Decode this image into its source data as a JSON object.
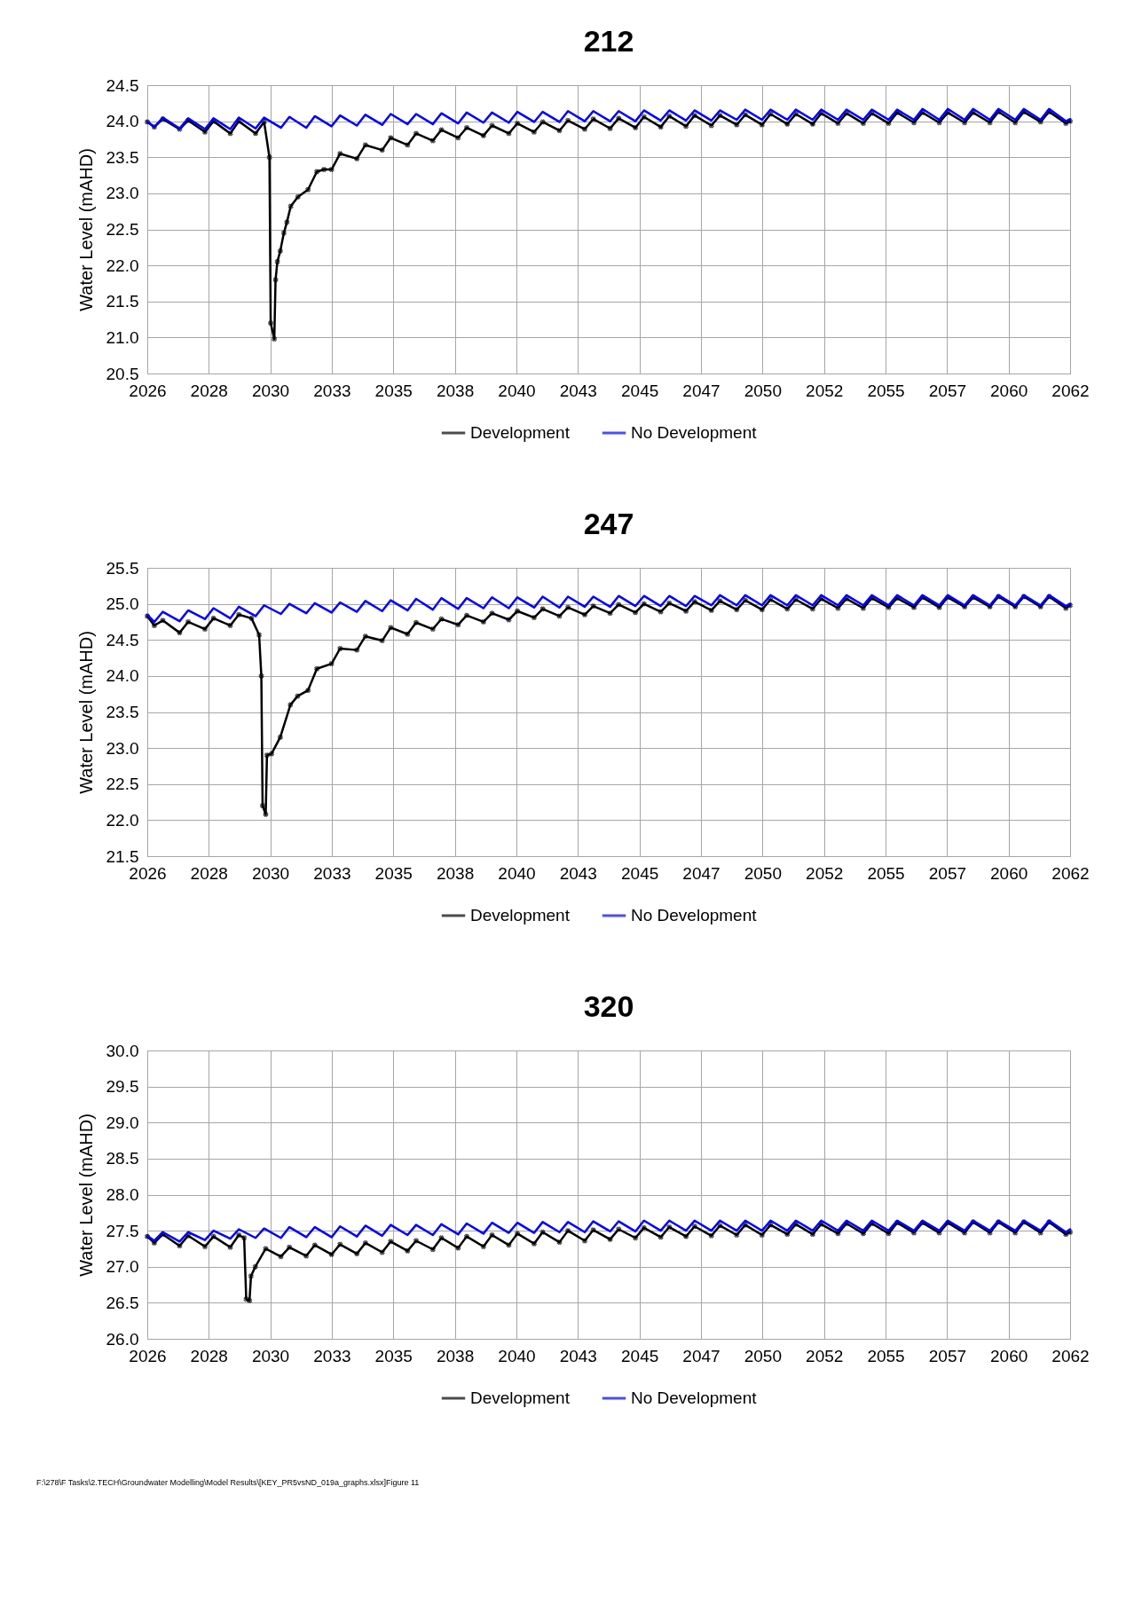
{
  "chart_data": [
    {
      "type": "line",
      "title": "212",
      "ylabel": "Water Level (mAHD)",
      "xlim": [
        "2026-01-20",
        "2062-07-01"
      ],
      "ylim": [
        20.5,
        24.5
      ],
      "xticks": [
        {
          "value": "2026-01-20",
          "label": "2026"
        },
        {
          "value": "2028-06-24",
          "label": "2028"
        },
        {
          "value": "2030-11-28",
          "label": "2030"
        },
        {
          "value": "2033-05-04",
          "label": "2033"
        },
        {
          "value": "2035-10-08",
          "label": "2035"
        },
        {
          "value": "2038-03-14",
          "label": "2038"
        },
        {
          "value": "2040-08-18",
          "label": "2040"
        },
        {
          "value": "2043-01-22",
          "label": "2043"
        },
        {
          "value": "2045-06-28",
          "label": "2045"
        },
        {
          "value": "2047-12-02",
          "label": "2047"
        },
        {
          "value": "2050-05-08",
          "label": "2050"
        },
        {
          "value": "2052-10-12",
          "label": "2052"
        },
        {
          "value": "2055-03-18",
          "label": "2055"
        },
        {
          "value": "2057-08-22",
          "label": "2057"
        },
        {
          "value": "2060-01-26",
          "label": "2060"
        },
        {
          "value": "2062-07-01",
          "label": "2062"
        }
      ],
      "yticks": [
        20.5,
        {
          "value": 21,
          "label": "21.0"
        },
        21.5,
        {
          "value": 22,
          "label": "22.0"
        },
        22.5,
        {
          "value": 23,
          "label": "23.0"
        },
        23.5,
        {
          "value": 24,
          "label": "24.0"
        },
        24.5
      ],
      "grid": true,
      "legend": "bottom",
      "x": [
        "2026-01-20",
        "2026-05-01",
        "2026-09-01",
        "2027-05-01",
        "2027-09-01",
        "2028-05-01",
        "2028-09-01",
        "2029-05-01",
        "2029-09-01",
        "2030-05-01",
        "2030-09-01",
        "2031-05-01",
        "2031-09-01",
        "2032-05-01",
        "2032-09-01",
        "2033-05-01",
        "2033-09-01",
        "2034-05-01",
        "2034-09-01",
        "2035-05-01",
        "2035-09-01",
        "2036-05-01",
        "2036-09-01",
        "2037-05-01",
        "2037-09-01",
        "2038-05-01",
        "2038-09-01",
        "2039-05-01",
        "2039-09-01",
        "2040-05-01",
        "2040-09-01",
        "2041-05-01",
        "2041-09-01",
        "2042-05-01",
        "2042-09-01",
        "2043-05-01",
        "2043-09-01",
        "2044-05-01",
        "2044-09-01",
        "2045-05-01",
        "2045-09-01",
        "2046-05-01",
        "2046-09-01",
        "2047-05-01",
        "2047-09-01",
        "2048-05-01",
        "2048-09-01",
        "2049-05-01",
        "2049-09-01",
        "2050-05-01",
        "2050-09-01",
        "2051-05-01",
        "2051-09-01",
        "2052-05-01",
        "2052-09-01",
        "2053-05-01",
        "2053-09-01",
        "2054-05-01",
        "2054-09-01",
        "2055-05-01",
        "2055-09-01",
        "2056-05-01",
        "2056-09-01",
        "2057-05-01",
        "2057-09-01",
        "2058-05-01",
        "2058-09-01",
        "2059-05-01",
        "2059-09-01",
        "2060-05-01",
        "2060-09-01",
        "2061-05-01",
        "2061-09-01",
        "2062-05-01",
        "2062-07-01"
      ],
      "series": [
        {
          "name": "Development",
          "color": "#000000",
          "marker": "cross",
          "x": [
            "2026-01-20",
            "2026-05-01",
            "2026-09-01",
            "2027-05-01",
            "2027-09-01",
            "2028-05-01",
            "2028-09-01",
            "2029-05-01",
            "2029-09-01",
            "2030-05-01",
            "2030-09-01",
            "2030-11-17",
            "2030-12-05",
            "2031-01-26",
            "2031-02-13",
            "2031-03-11",
            "2031-04-22",
            "2031-06-13",
            "2031-07-27",
            "2031-09-20",
            "2032-01-01",
            "2032-05-26",
            "2032-10-01",
            "2033-01-12",
            "2033-05-01",
            "2033-09-01",
            "2034-05-01",
            "2034-09-01",
            "2035-05-01",
            "2035-09-01",
            "2036-05-01",
            "2036-09-01",
            "2037-05-01",
            "2037-09-01",
            "2038-05-01",
            "2038-09-01",
            "2039-05-01",
            "2039-09-01",
            "2040-05-01",
            "2040-09-01",
            "2041-05-01",
            "2041-09-01",
            "2042-05-01",
            "2042-09-01",
            "2043-05-01",
            "2043-09-01",
            "2044-05-01",
            "2044-09-01",
            "2045-05-01",
            "2045-09-01",
            "2046-05-01",
            "2046-09-01",
            "2047-05-01",
            "2047-09-01",
            "2048-05-01",
            "2048-09-01",
            "2049-05-01",
            "2049-09-01",
            "2050-05-01",
            "2050-09-01",
            "2051-05-01",
            "2051-09-01",
            "2052-05-01",
            "2052-09-01",
            "2053-05-01",
            "2053-09-01",
            "2054-05-01",
            "2054-09-01",
            "2055-05-01",
            "2055-09-01",
            "2056-05-01",
            "2056-09-01",
            "2057-05-01",
            "2057-09-01",
            "2058-05-01",
            "2058-09-01",
            "2059-05-01",
            "2059-09-01",
            "2060-05-01",
            "2060-09-01",
            "2061-05-01",
            "2061-09-01",
            "2062-05-01",
            "2062-07-01"
          ],
          "values": [
            23.99,
            23.92,
            24.03,
            23.89,
            24.01,
            23.85,
            24.0,
            23.83,
            24.0,
            23.83,
            23.99,
            23.5,
            21.2,
            20.98,
            21.8,
            22.05,
            22.2,
            22.45,
            22.6,
            22.82,
            22.95,
            23.05,
            23.3,
            23.33,
            23.33,
            23.55,
            23.48,
            23.67,
            23.6,
            23.77,
            23.67,
            23.83,
            23.73,
            23.88,
            23.77,
            23.91,
            23.8,
            23.94,
            23.83,
            23.97,
            23.85,
            23.99,
            23.87,
            24.01,
            23.89,
            24.03,
            23.9,
            24.04,
            23.91,
            24.06,
            23.92,
            24.07,
            23.93,
            24.08,
            23.94,
            24.08,
            23.95,
            24.09,
            23.95,
            24.1,
            23.96,
            24.1,
            23.96,
            24.11,
            23.97,
            24.11,
            23.97,
            24.11,
            23.97,
            24.12,
            23.98,
            24.12,
            23.98,
            24.12,
            23.98,
            24.12,
            23.98,
            24.13,
            23.98,
            24.13,
            23.99,
            24.13,
            23.97,
            24.0
          ]
        },
        {
          "name": "No Development",
          "color": "#0000ff",
          "marker": "none",
          "values": [
            24.0,
            23.92,
            24.05,
            23.9,
            24.04,
            23.89,
            24.04,
            23.89,
            24.05,
            23.9,
            24.05,
            23.91,
            24.06,
            23.91,
            24.07,
            23.93,
            24.08,
            23.94,
            24.09,
            23.95,
            24.1,
            23.96,
            24.1,
            23.96,
            24.11,
            23.97,
            24.12,
            23.98,
            24.12,
            23.98,
            24.13,
            23.99,
            24.13,
            23.99,
            24.14,
            24.0,
            24.14,
            24.0,
            24.14,
            24.0,
            24.15,
            24.01,
            24.15,
            24.01,
            24.15,
            24.01,
            24.15,
            24.02,
            24.16,
            24.02,
            24.16,
            24.02,
            24.16,
            24.02,
            24.16,
            24.02,
            24.16,
            24.02,
            24.16,
            24.02,
            24.16,
            24.02,
            24.17,
            24.02,
            24.17,
            24.02,
            24.17,
            24.02,
            24.17,
            24.02,
            24.17,
            24.02,
            24.17,
            24.0,
            24.03
          ]
        }
      ]
    },
    {
      "type": "line",
      "title": "247",
      "ylabel": "Water Level (mAHD)",
      "xlim": [
        "2026-01-20",
        "2062-07-01"
      ],
      "ylim": [
        21.5,
        25.5
      ],
      "xticks": [
        {
          "value": "2026-01-20",
          "label": "2026"
        },
        {
          "value": "2028-06-24",
          "label": "2028"
        },
        {
          "value": "2030-11-28",
          "label": "2030"
        },
        {
          "value": "2033-05-04",
          "label": "2033"
        },
        {
          "value": "2035-10-08",
          "label": "2035"
        },
        {
          "value": "2038-03-14",
          "label": "2038"
        },
        {
          "value": "2040-08-18",
          "label": "2040"
        },
        {
          "value": "2043-01-22",
          "label": "2043"
        },
        {
          "value": "2045-06-28",
          "label": "2045"
        },
        {
          "value": "2047-12-02",
          "label": "2047"
        },
        {
          "value": "2050-05-08",
          "label": "2050"
        },
        {
          "value": "2052-10-12",
          "label": "2052"
        },
        {
          "value": "2055-03-18",
          "label": "2055"
        },
        {
          "value": "2057-08-22",
          "label": "2057"
        },
        {
          "value": "2060-01-26",
          "label": "2060"
        },
        {
          "value": "2062-07-01",
          "label": "2062"
        }
      ],
      "yticks": [
        21.5,
        {
          "value": 22,
          "label": "22.0"
        },
        22.5,
        {
          "value": 23,
          "label": "23.0"
        },
        23.5,
        {
          "value": 24,
          "label": "24.0"
        },
        24.5,
        {
          "value": 25,
          "label": "25.0"
        },
        25.5
      ],
      "grid": true,
      "legend": "bottom",
      "x": [
        "2026-01-20",
        "2026-05-01",
        "2026-09-01",
        "2027-05-01",
        "2027-09-01",
        "2028-05-01",
        "2028-09-01",
        "2029-05-01",
        "2029-09-01",
        "2030-05-01",
        "2030-09-01",
        "2031-05-01",
        "2031-09-01",
        "2032-05-01",
        "2032-09-01",
        "2033-05-01",
        "2033-09-01",
        "2034-05-01",
        "2034-09-01",
        "2035-05-01",
        "2035-09-01",
        "2036-05-01",
        "2036-09-01",
        "2037-05-01",
        "2037-09-01",
        "2038-05-01",
        "2038-09-01",
        "2039-05-01",
        "2039-09-01",
        "2040-05-01",
        "2040-09-01",
        "2041-05-01",
        "2041-09-01",
        "2042-05-01",
        "2042-09-01",
        "2043-05-01",
        "2043-09-01",
        "2044-05-01",
        "2044-09-01",
        "2045-05-01",
        "2045-09-01",
        "2046-05-01",
        "2046-09-01",
        "2047-05-01",
        "2047-09-01",
        "2048-05-01",
        "2048-09-01",
        "2049-05-01",
        "2049-09-01",
        "2050-05-01",
        "2050-09-01",
        "2051-05-01",
        "2051-09-01",
        "2052-05-01",
        "2052-09-01",
        "2053-05-01",
        "2053-09-01",
        "2054-05-01",
        "2054-09-01",
        "2055-05-01",
        "2055-09-01",
        "2056-05-01",
        "2056-09-01",
        "2057-05-01",
        "2057-09-01",
        "2058-05-01",
        "2058-09-01",
        "2059-05-01",
        "2059-09-01",
        "2060-05-01",
        "2060-09-01",
        "2061-05-01",
        "2061-09-01",
        "2062-05-01",
        "2062-07-01"
      ],
      "series": [
        {
          "name": "Development",
          "color": "#000000",
          "marker": "cross",
          "x": [
            "2026-01-20",
            "2026-05-01",
            "2026-09-01",
            "2027-05-01",
            "2027-09-01",
            "2028-05-01",
            "2028-09-01",
            "2029-05-01",
            "2029-09-01",
            "2030-03-03",
            "2030-06-21",
            "2030-07-23",
            "2030-08-10",
            "2030-09-24",
            "2030-10-12",
            "2030-12-17",
            "2031-04-22",
            "2031-09-16",
            "2031-12-28",
            "2032-05-26",
            "2032-10-01",
            "2033-05-01",
            "2033-09-01",
            "2034-05-01",
            "2034-09-01",
            "2035-05-01",
            "2035-09-01",
            "2036-05-01",
            "2036-09-01",
            "2037-05-01",
            "2037-09-01",
            "2038-05-01",
            "2038-09-01",
            "2039-05-01",
            "2039-09-01",
            "2040-05-01",
            "2040-09-01",
            "2041-05-01",
            "2041-09-01",
            "2042-05-01",
            "2042-09-01",
            "2043-05-01",
            "2043-09-01",
            "2044-05-01",
            "2044-09-01",
            "2045-05-01",
            "2045-09-01",
            "2046-05-01",
            "2046-09-01",
            "2047-05-01",
            "2047-09-01",
            "2048-05-01",
            "2048-09-01",
            "2049-05-01",
            "2049-09-01",
            "2050-05-01",
            "2050-09-01",
            "2051-05-01",
            "2051-09-01",
            "2052-05-01",
            "2052-09-01",
            "2053-05-01",
            "2053-09-01",
            "2054-05-01",
            "2054-09-01",
            "2055-05-01",
            "2055-09-01",
            "2056-05-01",
            "2056-09-01",
            "2057-05-01",
            "2057-09-01",
            "2058-05-01",
            "2058-09-01",
            "2059-05-01",
            "2059-09-01",
            "2060-05-01",
            "2060-09-01",
            "2061-05-01",
            "2061-09-01",
            "2062-05-01",
            "2062-07-01"
          ],
          "values": [
            24.83,
            24.7,
            24.77,
            24.6,
            24.75,
            24.65,
            24.8,
            24.7,
            24.85,
            24.8,
            24.57,
            24.0,
            22.2,
            22.08,
            22.9,
            22.92,
            23.15,
            23.6,
            23.72,
            23.8,
            24.1,
            24.17,
            24.38,
            24.36,
            24.55,
            24.49,
            24.67,
            24.58,
            24.74,
            24.65,
            24.79,
            24.71,
            24.84,
            24.75,
            24.87,
            24.78,
            24.9,
            24.81,
            24.93,
            24.83,
            24.95,
            24.85,
            24.97,
            24.87,
            24.99,
            24.88,
            25.0,
            24.89,
            25.01,
            24.9,
            25.03,
            24.91,
            25.04,
            24.92,
            25.05,
            24.92,
            25.06,
            24.93,
            25.06,
            24.93,
            25.07,
            24.94,
            25.07,
            24.94,
            25.08,
            24.95,
            25.08,
            24.95,
            25.09,
            24.95,
            25.09,
            24.96,
            25.09,
            24.96,
            25.1,
            24.96,
            25.1,
            24.96,
            25.1,
            24.94,
            24.98
          ]
        },
        {
          "name": "No Development",
          "color": "#0000ff",
          "marker": "none",
          "values": [
            24.85,
            24.75,
            24.89,
            24.76,
            24.91,
            24.79,
            24.94,
            24.8,
            24.96,
            24.83,
            24.98,
            24.86,
            25.0,
            24.87,
            25.01,
            24.88,
            25.02,
            24.89,
            25.04,
            24.9,
            25.05,
            24.91,
            25.07,
            24.92,
            25.08,
            24.93,
            25.08,
            24.94,
            25.09,
            24.94,
            25.09,
            24.95,
            25.1,
            24.95,
            25.1,
            24.96,
            25.1,
            24.96,
            25.11,
            24.97,
            25.11,
            24.97,
            25.11,
            24.97,
            25.11,
            24.98,
            25.12,
            24.98,
            25.12,
            24.98,
            25.12,
            24.98,
            25.12,
            24.98,
            25.12,
            24.98,
            25.12,
            24.98,
            25.12,
            24.98,
            25.12,
            24.98,
            25.12,
            24.98,
            25.12,
            24.98,
            25.12,
            24.98,
            25.12,
            24.98,
            25.12,
            24.98,
            25.12,
            24.97,
            25.0
          ]
        }
      ]
    },
    {
      "type": "line",
      "title": "320",
      "ylabel": "Water Level (mAHD)",
      "xlim": [
        "2026-01-20",
        "2062-07-01"
      ],
      "ylim": [
        26.0,
        30.0
      ],
      "xticks": [
        {
          "value": "2026-01-20",
          "label": "2026"
        },
        {
          "value": "2028-06-24",
          "label": "2028"
        },
        {
          "value": "2030-11-28",
          "label": "2030"
        },
        {
          "value": "2033-05-04",
          "label": "2033"
        },
        {
          "value": "2035-10-08",
          "label": "2035"
        },
        {
          "value": "2038-03-14",
          "label": "2038"
        },
        {
          "value": "2040-08-18",
          "label": "2040"
        },
        {
          "value": "2043-01-22",
          "label": "2043"
        },
        {
          "value": "2045-06-28",
          "label": "2045"
        },
        {
          "value": "2047-12-02",
          "label": "2047"
        },
        {
          "value": "2050-05-08",
          "label": "2050"
        },
        {
          "value": "2052-10-12",
          "label": "2052"
        },
        {
          "value": "2055-03-18",
          "label": "2055"
        },
        {
          "value": "2057-08-22",
          "label": "2057"
        },
        {
          "value": "2060-01-26",
          "label": "2060"
        },
        {
          "value": "2062-07-01",
          "label": "2062"
        }
      ],
      "yticks": [
        {
          "value": 26,
          "label": "26.0"
        },
        26.5,
        {
          "value": 27,
          "label": "27.0"
        },
        27.5,
        {
          "value": 28,
          "label": "28.0"
        },
        28.5,
        {
          "value": 29,
          "label": "29.0"
        },
        29.5,
        {
          "value": 30,
          "label": "30.0"
        }
      ],
      "grid": true,
      "legend": "bottom",
      "annotations": [
        "F:\\278\\F Tasks\\2.TECH\\Groundwater Modelling\\Model Results\\[KEY_PR5vsND_019a_graphs.xlsx]Figure 11"
      ],
      "x": [
        "2026-01-20",
        "2026-05-01",
        "2026-09-01",
        "2027-05-01",
        "2027-09-01",
        "2028-05-01",
        "2028-09-01",
        "2029-05-01",
        "2029-09-01",
        "2030-05-01",
        "2030-09-01",
        "2031-05-01",
        "2031-09-01",
        "2032-05-01",
        "2032-09-01",
        "2033-05-01",
        "2033-09-01",
        "2034-05-01",
        "2034-09-01",
        "2035-05-01",
        "2035-09-01",
        "2036-05-01",
        "2036-09-01",
        "2037-05-01",
        "2037-09-01",
        "2038-05-01",
        "2038-09-01",
        "2039-05-01",
        "2039-09-01",
        "2040-05-01",
        "2040-09-01",
        "2041-05-01",
        "2041-09-01",
        "2042-05-01",
        "2042-09-01",
        "2043-05-01",
        "2043-09-01",
        "2044-05-01",
        "2044-09-01",
        "2045-05-01",
        "2045-09-01",
        "2046-05-01",
        "2046-09-01",
        "2047-05-01",
        "2047-09-01",
        "2048-05-01",
        "2048-09-01",
        "2049-05-01",
        "2049-09-01",
        "2050-05-01",
        "2050-09-01",
        "2051-05-01",
        "2051-09-01",
        "2052-05-01",
        "2052-09-01",
        "2053-05-01",
        "2053-09-01",
        "2054-05-01",
        "2054-09-01",
        "2055-05-01",
        "2055-09-01",
        "2056-05-01",
        "2056-09-01",
        "2057-05-01",
        "2057-09-01",
        "2058-05-01",
        "2058-09-01",
        "2059-05-01",
        "2059-09-01",
        "2060-05-01",
        "2060-09-01",
        "2061-05-01",
        "2061-09-01",
        "2062-05-01",
        "2062-07-01"
      ],
      "series": [
        {
          "name": "Development",
          "color": "#000000",
          "marker": "cross",
          "x": [
            "2026-01-20",
            "2026-05-01",
            "2026-09-01",
            "2027-05-01",
            "2027-09-01",
            "2028-05-01",
            "2028-09-01",
            "2029-05-01",
            "2029-09-01",
            "2029-11-17",
            "2029-12-17",
            "2030-02-02",
            "2030-02-24",
            "2030-04-27",
            "2030-09-24",
            "2031-05-01",
            "2031-09-01",
            "2032-05-01",
            "2032-09-01",
            "2033-05-01",
            "2033-09-01",
            "2034-05-01",
            "2034-09-01",
            "2035-05-01",
            "2035-09-01",
            "2036-05-01",
            "2036-09-01",
            "2037-05-01",
            "2037-09-01",
            "2038-05-01",
            "2038-09-01",
            "2039-05-01",
            "2039-09-01",
            "2040-05-01",
            "2040-09-01",
            "2041-05-01",
            "2041-09-01",
            "2042-05-01",
            "2042-09-01",
            "2043-05-01",
            "2043-09-01",
            "2044-05-01",
            "2044-09-01",
            "2045-05-01",
            "2045-09-01",
            "2046-05-01",
            "2046-09-01",
            "2047-05-01",
            "2047-09-01",
            "2048-05-01",
            "2048-09-01",
            "2049-05-01",
            "2049-09-01",
            "2050-05-01",
            "2050-09-01",
            "2051-05-01",
            "2051-09-01",
            "2052-05-01",
            "2052-09-01",
            "2053-05-01",
            "2053-09-01",
            "2054-05-01",
            "2054-09-01",
            "2055-05-01",
            "2055-09-01",
            "2056-05-01",
            "2056-09-01",
            "2057-05-01",
            "2057-09-01",
            "2058-05-01",
            "2058-09-01",
            "2059-05-01",
            "2059-09-01",
            "2060-05-01",
            "2060-09-01",
            "2061-05-01",
            "2061-09-01",
            "2062-05-01",
            "2062-07-01"
          ],
          "values": [
            27.42,
            27.33,
            27.45,
            27.29,
            27.43,
            27.28,
            27.42,
            27.27,
            27.44,
            27.4,
            26.55,
            26.53,
            26.87,
            27.0,
            27.25,
            27.14,
            27.27,
            27.15,
            27.3,
            27.17,
            27.31,
            27.18,
            27.33,
            27.2,
            27.35,
            27.22,
            27.36,
            27.24,
            27.4,
            27.26,
            27.42,
            27.28,
            27.44,
            27.3,
            27.46,
            27.32,
            27.48,
            27.34,
            27.5,
            27.36,
            27.51,
            27.38,
            27.52,
            27.4,
            27.54,
            27.41,
            27.55,
            27.42,
            27.56,
            27.43,
            27.57,
            27.44,
            27.58,
            27.44,
            27.58,
            27.45,
            27.59,
            27.45,
            27.59,
            27.46,
            27.6,
            27.46,
            27.6,
            27.46,
            27.61,
            27.47,
            27.61,
            27.47,
            27.61,
            27.47,
            27.62,
            27.47,
            27.62,
            27.47,
            27.62,
            27.47,
            27.62,
            27.45,
            27.48
          ]
        },
        {
          "name": "No Development",
          "color": "#0000ff",
          "marker": "none",
          "values": [
            27.43,
            27.36,
            27.48,
            27.35,
            27.48,
            27.37,
            27.5,
            27.39,
            27.52,
            27.4,
            27.53,
            27.4,
            27.55,
            27.41,
            27.55,
            27.41,
            27.56,
            27.42,
            27.57,
            27.43,
            27.58,
            27.44,
            27.58,
            27.44,
            27.59,
            27.45,
            27.6,
            27.46,
            27.61,
            27.47,
            27.61,
            27.47,
            27.62,
            27.48,
            27.62,
            27.48,
            27.63,
            27.49,
            27.63,
            27.49,
            27.64,
            27.5,
            27.64,
            27.5,
            27.64,
            27.5,
            27.64,
            27.5,
            27.64,
            27.5,
            27.64,
            27.5,
            27.64,
            27.5,
            27.64,
            27.5,
            27.64,
            27.5,
            27.64,
            27.5,
            27.64,
            27.5,
            27.64,
            27.5,
            27.64,
            27.5,
            27.64,
            27.5,
            27.64,
            27.5,
            27.64,
            27.5,
            27.64,
            27.48,
            27.52
          ]
        }
      ]
    }
  ]
}
